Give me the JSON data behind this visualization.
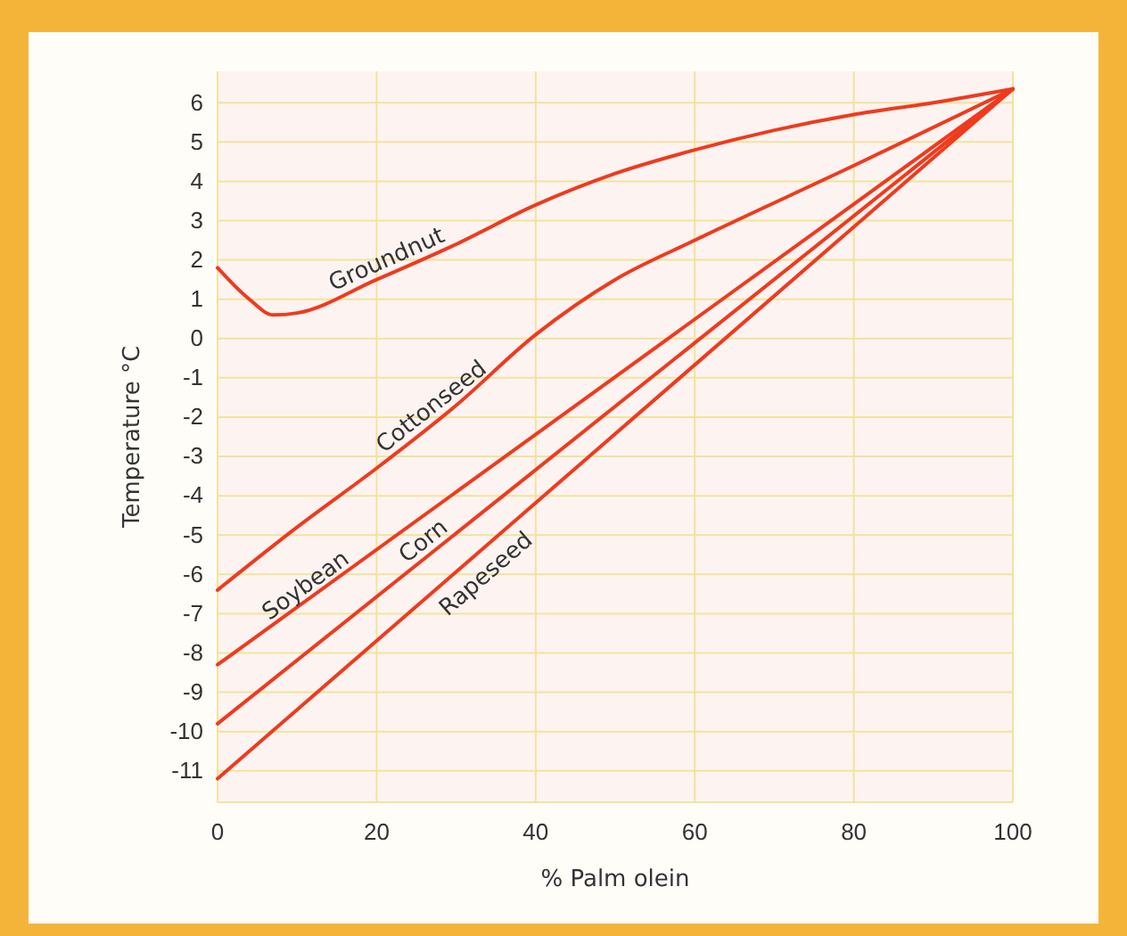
{
  "chart_data": {
    "type": "line",
    "xlabel": "% Palm olein",
    "ylabel": "Temperature °C",
    "xlim": [
      0,
      100
    ],
    "xticks": [
      0,
      20,
      40,
      60,
      80,
      100
    ],
    "ylim": [
      -11.8,
      6.8
    ],
    "yticks": [
      -11,
      -10,
      -9,
      -8,
      -7,
      -6,
      -5,
      -4,
      -3,
      -2,
      -1,
      0,
      1,
      2,
      3,
      4,
      5,
      6
    ],
    "grid": true,
    "line_style": "solid",
    "marker": "none",
    "series": [
      {
        "name": "Groundnut",
        "color": "#f03a1e",
        "x": [
          0,
          4,
          7,
          10,
          20,
          30,
          40,
          50,
          60,
          70,
          80,
          90,
          100
        ],
        "values": [
          1.8,
          1.0,
          0.6,
          0.65,
          1.5,
          2.4,
          3.4,
          4.2,
          4.8,
          5.3,
          5.7,
          6.0,
          6.35
        ]
      },
      {
        "name": "Cottonseed",
        "color": "#f03a1e",
        "x": [
          0,
          10,
          20,
          30,
          40,
          50,
          60,
          80,
          100
        ],
        "values": [
          -6.4,
          -4.8,
          -3.3,
          -1.7,
          0.1,
          1.5,
          2.5,
          4.4,
          6.35
        ]
      },
      {
        "name": "Soybean",
        "color": "#f03a1e",
        "x": [
          0,
          100
        ],
        "values": [
          -8.3,
          6.35
        ]
      },
      {
        "name": "Corn",
        "color": "#f03a1e",
        "x": [
          0,
          100
        ],
        "values": [
          -9.8,
          6.35
        ]
      },
      {
        "name": "Rapeseed",
        "color": "#f03a1e",
        "x": [
          0,
          100
        ],
        "values": [
          -11.2,
          6.35
        ]
      }
    ]
  }
}
